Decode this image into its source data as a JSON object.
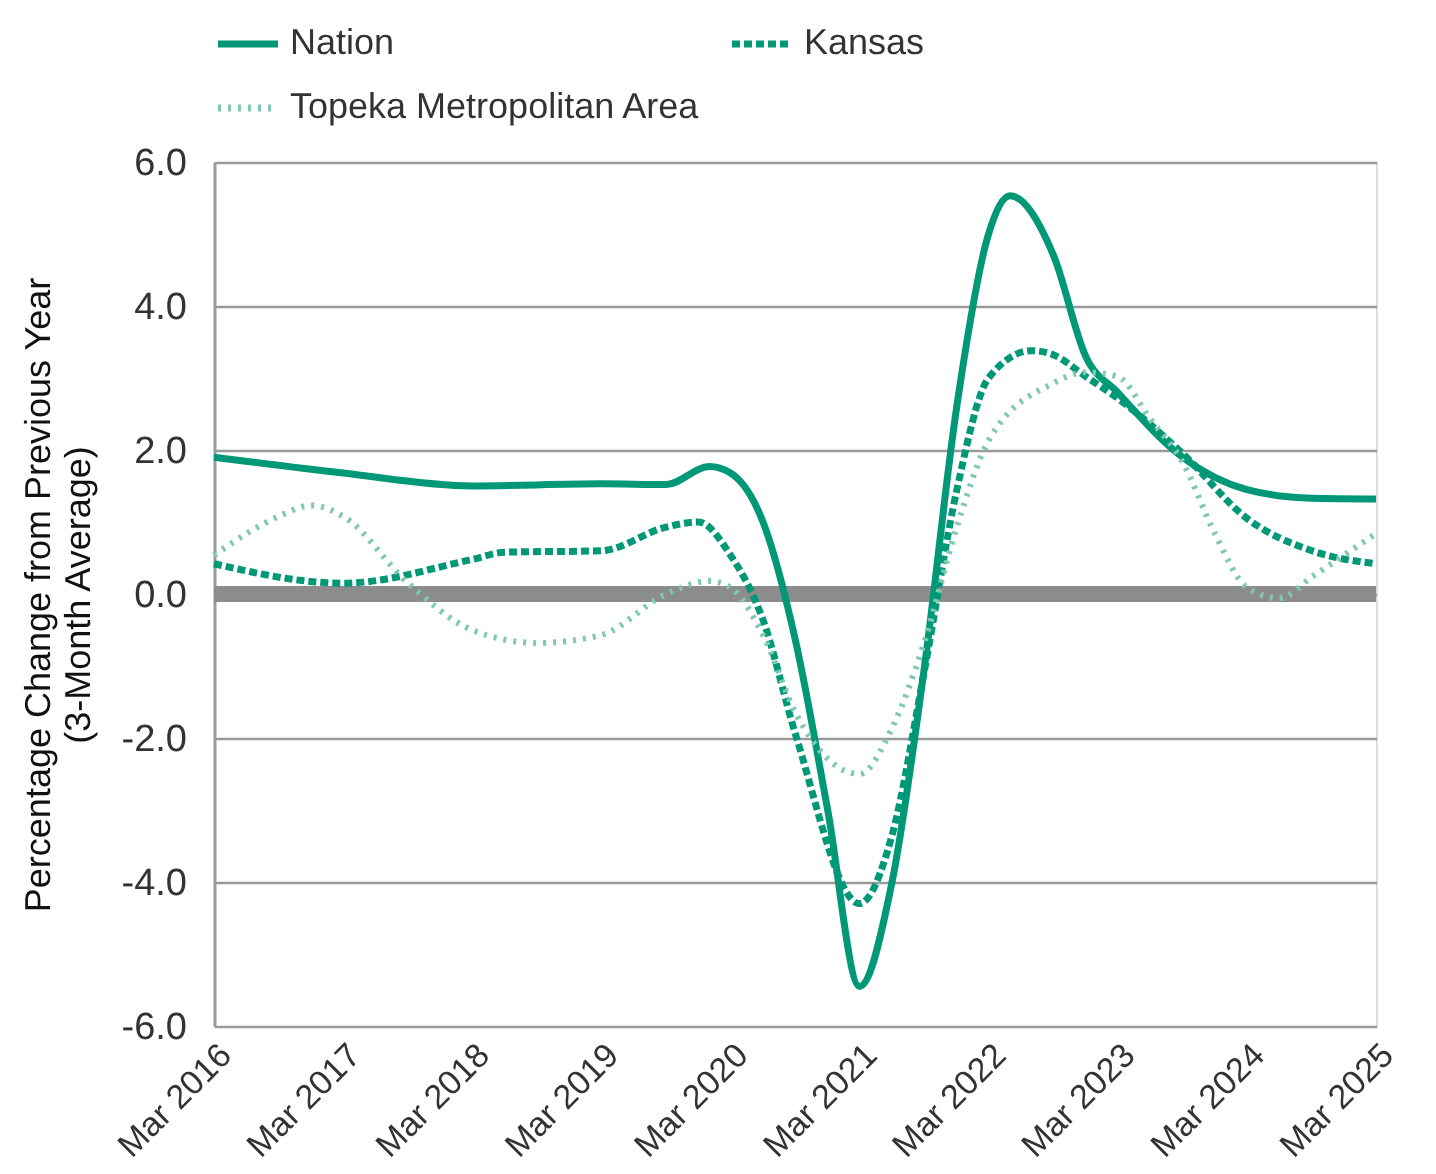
{
  "chart_data": {
    "type": "line",
    "ylabel": "Percentage Change from Previous Year\n(3-Month Average)",
    "xlim": [
      "2016-03",
      "2025-03"
    ],
    "xticks": [
      {
        "value": "2016-03",
        "label": "Mar 2016"
      },
      {
        "value": "2017-03",
        "label": "Mar 2017"
      },
      {
        "value": "2018-03",
        "label": "Mar 2018"
      },
      {
        "value": "2019-03",
        "label": "Mar 2019"
      },
      {
        "value": "2020-03",
        "label": "Mar 2020"
      },
      {
        "value": "2021-03",
        "label": "Mar 2021"
      },
      {
        "value": "2022-03",
        "label": "Mar 2022"
      },
      {
        "value": "2023-03",
        "label": "Mar 2023"
      },
      {
        "value": "2024-03",
        "label": "Mar 2024"
      },
      {
        "value": "2025-03",
        "label": "Mar 2025"
      }
    ],
    "ylim": [
      -6,
      6
    ],
    "yticks": [
      {
        "value": -6,
        "label": "-6.0"
      },
      {
        "value": -4,
        "label": "-4.0"
      },
      {
        "value": -2,
        "label": "-2.0"
      },
      {
        "value": 0,
        "label": "0.0"
      },
      {
        "value": 2,
        "label": "2.0"
      },
      {
        "value": 4,
        "label": "4.0"
      },
      {
        "value": 6,
        "label": "6.0"
      }
    ],
    "grid": "y",
    "legend": "top",
    "marker": "none",
    "ref_lines": [
      {
        "axis": "y",
        "value": 0,
        "color": "#8c8c8c"
      }
    ],
    "series": [
      {
        "name": "Nation",
        "color": "#009877",
        "line_style": "solid",
        "x": [
          "2016-03",
          "2017-03",
          "2018-03",
          "2019-03",
          "2019-09",
          "2020-01",
          "2020-03",
          "2020-06",
          "2020-09",
          "2020-12",
          "2021-03",
          "2021-06",
          "2021-09",
          "2021-12",
          "2022-03",
          "2022-05",
          "2022-09",
          "2022-12",
          "2023-03",
          "2023-09",
          "2024-03",
          "2024-09",
          "2025-03"
        ],
        "values": [
          1.9,
          1.68,
          1.5,
          1.53,
          1.52,
          1.77,
          1.68,
          1.0,
          -0.65,
          -3.0,
          -5.45,
          -4.0,
          -1.0,
          2.6,
          5.0,
          5.53,
          4.7,
          3.3,
          2.8,
          1.9,
          1.45,
          1.33,
          1.32
        ]
      },
      {
        "name": "Kansas",
        "color": "#009877",
        "line_style": "dashed",
        "x": [
          "2016-03",
          "2017-03",
          "2018-03",
          "2018-06",
          "2019-03",
          "2019-09",
          "2019-12",
          "2020-03",
          "2020-06",
          "2020-09",
          "2021-03",
          "2021-06",
          "2021-09",
          "2021-12",
          "2022-03",
          "2022-07",
          "2022-09",
          "2022-12",
          "2023-03",
          "2023-09",
          "2024-03",
          "2024-09",
          "2025-03"
        ],
        "values": [
          0.42,
          0.15,
          0.48,
          0.58,
          0.6,
          0.93,
          1.0,
          0.54,
          -0.36,
          -1.95,
          -4.3,
          -3.35,
          -1.05,
          1.44,
          3.0,
          3.38,
          3.32,
          3.02,
          2.72,
          1.95,
          1.05,
          0.6,
          0.42
        ]
      },
      {
        "name": "Topeka Metropolitan Area",
        "color": "#7fc9b2",
        "line_style": "dotted",
        "x": [
          "2016-03",
          "2016-09",
          "2016-12",
          "2017-03",
          "2017-09",
          "2018-03",
          "2018-09",
          "2019-03",
          "2019-09",
          "2020-01",
          "2020-03",
          "2020-06",
          "2020-09",
          "2021-03",
          "2021-06",
          "2021-09",
          "2021-12",
          "2022-03",
          "2022-09",
          "2022-12",
          "2023-03",
          "2023-06",
          "2023-09",
          "2023-12",
          "2024-03",
          "2024-06",
          "2024-09",
          "2024-12",
          "2025-03"
        ],
        "values": [
          0.54,
          1.08,
          1.23,
          1.08,
          0.15,
          -0.5,
          -0.68,
          -0.57,
          0.0,
          0.18,
          0.09,
          -0.57,
          -1.65,
          -2.5,
          -1.86,
          -0.66,
          0.93,
          2.13,
          2.93,
          3.08,
          3.02,
          2.43,
          1.83,
          0.84,
          0.09,
          -0.06,
          0.24,
          0.54,
          0.84
        ]
      }
    ]
  }
}
